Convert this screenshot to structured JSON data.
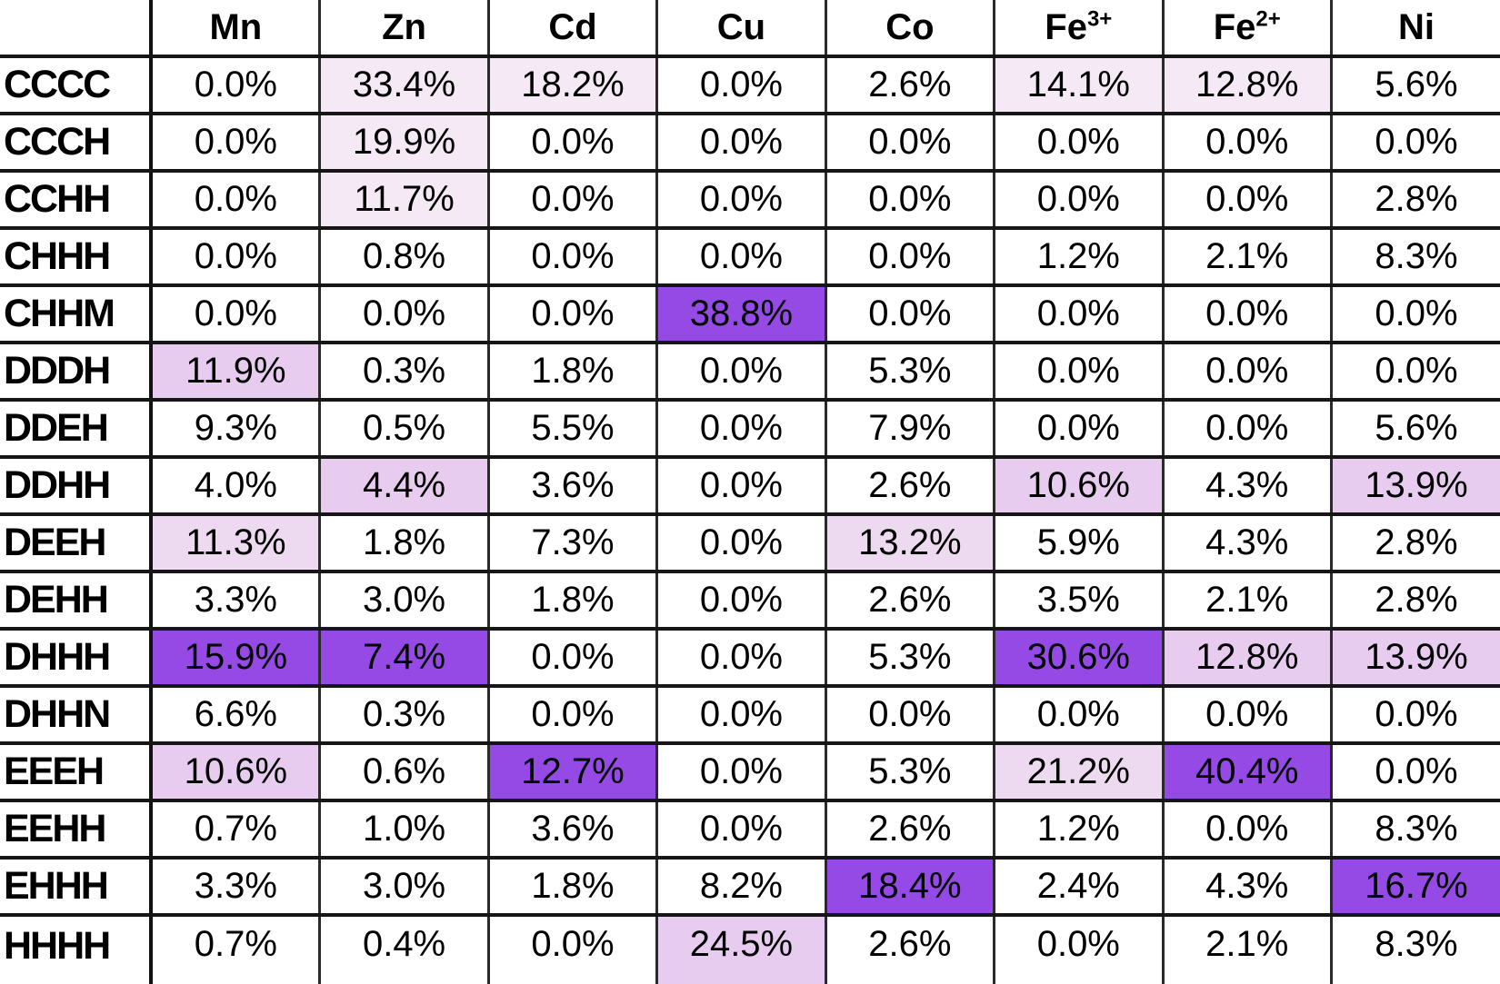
{
  "chart_data": {
    "type": "heatmap",
    "title": "",
    "value_format": "percent",
    "columns": [
      {
        "label": "Mn",
        "sup": ""
      },
      {
        "label": "Zn",
        "sup": ""
      },
      {
        "label": "Cd",
        "sup": ""
      },
      {
        "label": "Cu",
        "sup": ""
      },
      {
        "label": "Co",
        "sup": ""
      },
      {
        "label": "Fe",
        "sup": "3+"
      },
      {
        "label": "Fe",
        "sup": "2+"
      },
      {
        "label": "Ni",
        "sup": ""
      }
    ],
    "highlight_colors": {
      "0": "transparent",
      "1": "#f4e9f4",
      "2": "#eedaf0",
      "3": "#e8ccf0",
      "4": "#9549e5"
    },
    "highlight_legend": {
      "0": "no-highlight",
      "1": "pale-pink",
      "2": "medium-pale-purple",
      "3": "light-purple",
      "4": "vivid-purple"
    },
    "rows": [
      {
        "label": "CCCC",
        "values": [
          "0.0%",
          "33.4%",
          "18.2%",
          "0.0%",
          "2.6%",
          "14.1%",
          "12.8%",
          "5.6%"
        ],
        "highlights": [
          0,
          1,
          1,
          0,
          0,
          1,
          1,
          0
        ]
      },
      {
        "label": "CCCH",
        "values": [
          "0.0%",
          "19.9%",
          "0.0%",
          "0.0%",
          "0.0%",
          "0.0%",
          "0.0%",
          "0.0%"
        ],
        "highlights": [
          0,
          1,
          0,
          0,
          0,
          0,
          0,
          0
        ]
      },
      {
        "label": "CCHH",
        "values": [
          "0.0%",
          "11.7%",
          "0.0%",
          "0.0%",
          "0.0%",
          "0.0%",
          "0.0%",
          "2.8%"
        ],
        "highlights": [
          0,
          1,
          0,
          0,
          0,
          0,
          0,
          0
        ]
      },
      {
        "label": "CHHH",
        "values": [
          "0.0%",
          "0.8%",
          "0.0%",
          "0.0%",
          "0.0%",
          "1.2%",
          "2.1%",
          "8.3%"
        ],
        "highlights": [
          0,
          0,
          0,
          0,
          0,
          0,
          0,
          0
        ]
      },
      {
        "label": "CHHM",
        "values": [
          "0.0%",
          "0.0%",
          "0.0%",
          "38.8%",
          "0.0%",
          "0.0%",
          "0.0%",
          "0.0%"
        ],
        "highlights": [
          0,
          0,
          0,
          4,
          0,
          0,
          0,
          0
        ]
      },
      {
        "label": "DDDH",
        "values": [
          "11.9%",
          "0.3%",
          "1.8%",
          "0.0%",
          "5.3%",
          "0.0%",
          "0.0%",
          "0.0%"
        ],
        "highlights": [
          3,
          0,
          0,
          0,
          0,
          0,
          0,
          0
        ]
      },
      {
        "label": "DDEH",
        "values": [
          "9.3%",
          "0.5%",
          "5.5%",
          "0.0%",
          "7.9%",
          "0.0%",
          "0.0%",
          "5.6%"
        ],
        "highlights": [
          0,
          0,
          0,
          0,
          0,
          0,
          0,
          0
        ]
      },
      {
        "label": "DDHH",
        "values": [
          "4.0%",
          "4.4%",
          "3.6%",
          "0.0%",
          "2.6%",
          "10.6%",
          "4.3%",
          "13.9%"
        ],
        "highlights": [
          0,
          3,
          0,
          0,
          0,
          3,
          0,
          3
        ]
      },
      {
        "label": "DEEH",
        "values": [
          "11.3%",
          "1.8%",
          "7.3%",
          "0.0%",
          "13.2%",
          "5.9%",
          "4.3%",
          "2.8%"
        ],
        "highlights": [
          2,
          0,
          0,
          0,
          2,
          0,
          0,
          0
        ]
      },
      {
        "label": "DEHH",
        "values": [
          "3.3%",
          "3.0%",
          "1.8%",
          "0.0%",
          "2.6%",
          "3.5%",
          "2.1%",
          "2.8%"
        ],
        "highlights": [
          0,
          0,
          0,
          0,
          0,
          0,
          0,
          0
        ]
      },
      {
        "label": "DHHH",
        "values": [
          "15.9%",
          "7.4%",
          "0.0%",
          "0.0%",
          "5.3%",
          "30.6%",
          "12.8%",
          "13.9%"
        ],
        "highlights": [
          4,
          4,
          0,
          0,
          0,
          4,
          3,
          3
        ]
      },
      {
        "label": "DHHN",
        "values": [
          "6.6%",
          "0.3%",
          "0.0%",
          "0.0%",
          "0.0%",
          "0.0%",
          "0.0%",
          "0.0%"
        ],
        "highlights": [
          0,
          0,
          0,
          0,
          0,
          0,
          0,
          0
        ]
      },
      {
        "label": "EEEH",
        "values": [
          "10.6%",
          "0.6%",
          "12.7%",
          "0.0%",
          "5.3%",
          "21.2%",
          "40.4%",
          "0.0%"
        ],
        "highlights": [
          3,
          0,
          4,
          0,
          0,
          2,
          4,
          0
        ]
      },
      {
        "label": "EEHH",
        "values": [
          "0.7%",
          "1.0%",
          "3.6%",
          "0.0%",
          "2.6%",
          "1.2%",
          "0.0%",
          "8.3%"
        ],
        "highlights": [
          0,
          0,
          0,
          0,
          0,
          0,
          0,
          0
        ]
      },
      {
        "label": "EHHH",
        "values": [
          "3.3%",
          "3.0%",
          "1.8%",
          "8.2%",
          "18.4%",
          "2.4%",
          "4.3%",
          "16.7%"
        ],
        "highlights": [
          0,
          0,
          0,
          0,
          4,
          0,
          0,
          4
        ]
      },
      {
        "label": "HHHH",
        "values": [
          "0.7%",
          "0.4%",
          "0.0%",
          "24.5%",
          "2.6%",
          "0.0%",
          "2.1%",
          "8.3%"
        ],
        "highlights": [
          0,
          0,
          0,
          3,
          0,
          0,
          0,
          0
        ]
      }
    ]
  }
}
